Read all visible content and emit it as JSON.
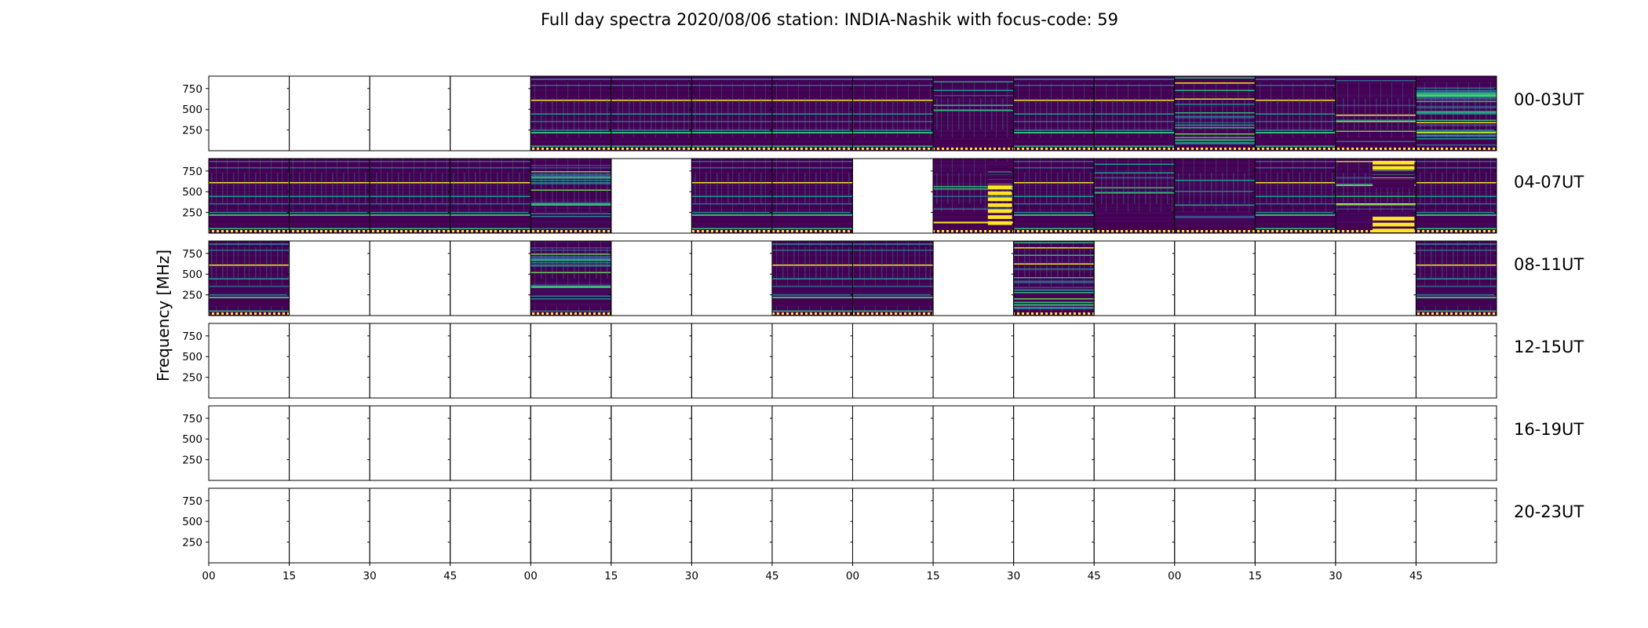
{
  "chart_data": {
    "type": "heatmap",
    "title": "Full day spectra 2020/08/06 station: INDIA-Nashik with focus-code: 59",
    "ylabel": "Frequency [MHz]",
    "xlabel": "",
    "y_ticks": [
      "750",
      "500",
      "250"
    ],
    "ylim": [
      0,
      900
    ],
    "x_ticks": [
      "00",
      "15",
      "30",
      "45",
      "00",
      "15",
      "30",
      "45",
      "00",
      "15",
      "30",
      "45",
      "00",
      "15",
      "30",
      "45"
    ],
    "colormap": "viridis",
    "colors": {
      "low": "#440154",
      "mid": "#21918c",
      "high": "#fde725"
    },
    "rows": [
      {
        "label": "00-03UT",
        "panels": [
          0,
          0,
          0,
          0,
          1,
          1,
          1,
          1,
          1,
          1,
          1,
          1,
          1,
          1,
          1,
          1
        ],
        "styles": [
          0,
          0,
          0,
          0,
          0,
          0,
          0,
          0,
          0,
          1,
          0,
          0,
          3,
          0,
          4,
          5
        ]
      },
      {
        "label": "04-07UT",
        "panels": [
          1,
          1,
          1,
          1,
          1,
          0,
          1,
          1,
          0,
          1,
          1,
          1,
          1,
          1,
          1,
          1
        ],
        "styles": [
          0,
          0,
          0,
          0,
          2,
          0,
          0,
          0,
          0,
          6,
          0,
          1,
          8,
          0,
          7,
          0
        ]
      },
      {
        "label": "08-11UT",
        "panels": [
          1,
          0,
          0,
          0,
          1,
          0,
          0,
          1,
          1,
          0,
          1,
          0,
          0,
          0,
          0,
          1
        ],
        "styles": [
          0,
          0,
          0,
          0,
          2,
          0,
          0,
          0,
          0,
          0,
          3,
          0,
          0,
          0,
          0,
          0
        ]
      },
      {
        "label": "12-15UT",
        "panels": [
          0,
          0,
          0,
          0,
          0,
          0,
          0,
          0,
          0,
          0,
          0,
          0,
          0,
          0,
          0,
          0
        ],
        "styles": [
          0,
          0,
          0,
          0,
          0,
          0,
          0,
          0,
          0,
          0,
          0,
          0,
          0,
          0,
          0,
          0
        ]
      },
      {
        "label": "16-19UT",
        "panels": [
          0,
          0,
          0,
          0,
          0,
          0,
          0,
          0,
          0,
          0,
          0,
          0,
          0,
          0,
          0,
          0
        ],
        "styles": [
          0,
          0,
          0,
          0,
          0,
          0,
          0,
          0,
          0,
          0,
          0,
          0,
          0,
          0,
          0,
          0
        ]
      },
      {
        "label": "20-23UT",
        "panels": [
          0,
          0,
          0,
          0,
          0,
          0,
          0,
          0,
          0,
          0,
          0,
          0,
          0,
          0,
          0,
          0
        ],
        "styles": [
          0,
          0,
          0,
          0,
          0,
          0,
          0,
          0,
          0,
          0,
          0,
          0,
          0,
          0,
          0,
          0
        ]
      }
    ]
  }
}
